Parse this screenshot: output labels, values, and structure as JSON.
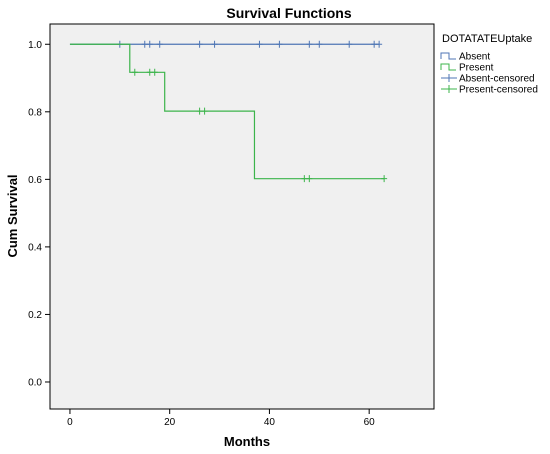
{
  "chart_data": {
    "type": "line",
    "title": "Survival Functions",
    "xlabel": "Months",
    "ylabel": "Cum Survival",
    "xlim": [
      -4,
      73
    ],
    "ylim": [
      -0.08,
      1.06
    ],
    "x_ticks": [
      0,
      20,
      40,
      60
    ],
    "y_ticks": [
      0.0,
      0.2,
      0.4,
      0.6,
      0.8,
      1.0
    ],
    "y_tick_labels": [
      "0.0",
      "0.2",
      "0.4",
      "0.6",
      "0.8",
      "1.0"
    ],
    "grid": false,
    "legend_title": "DOTATATEUptake",
    "legend_position": "right",
    "legend": [
      {
        "label": "Absent",
        "kind": "line",
        "series": 0
      },
      {
        "label": "Present",
        "kind": "line",
        "series": 1
      },
      {
        "label": "Absent-censored",
        "kind": "censor",
        "series": 0
      },
      {
        "label": "Present-censored",
        "kind": "censor",
        "series": 1
      }
    ],
    "series": [
      {
        "color": "#4f76b5",
        "steps": [
          [
            0,
            1.0
          ],
          [
            62,
            1.0
          ]
        ],
        "censored": [
          [
            10,
            1.0
          ],
          [
            15,
            1.0
          ],
          [
            16,
            1.0
          ],
          [
            18,
            1.0
          ],
          [
            26,
            1.0
          ],
          [
            29,
            1.0
          ],
          [
            38,
            1.0
          ],
          [
            42,
            1.0
          ],
          [
            48,
            1.0
          ],
          [
            50,
            1.0
          ],
          [
            56,
            1.0
          ],
          [
            61,
            1.0
          ],
          [
            62,
            1.0
          ]
        ]
      },
      {
        "color": "#3cb44b",
        "steps": [
          [
            0,
            1.0
          ],
          [
            12,
            0.917
          ],
          [
            19,
            0.802
          ],
          [
            37,
            0.602
          ],
          [
            63,
            0.602
          ]
        ],
        "censored": [
          [
            13,
            0.917
          ],
          [
            16,
            0.917
          ],
          [
            17,
            0.917
          ],
          [
            26,
            0.802
          ],
          [
            27,
            0.802
          ],
          [
            47,
            0.602
          ],
          [
            48,
            0.602
          ],
          [
            63,
            0.602
          ]
        ]
      }
    ]
  }
}
